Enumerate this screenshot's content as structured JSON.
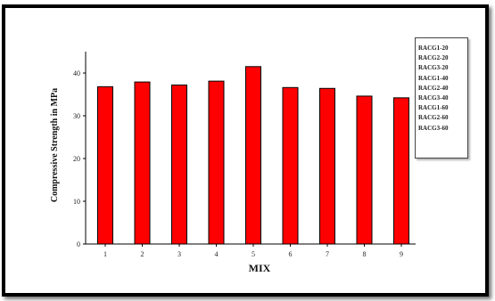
{
  "chart_data": {
    "type": "bar",
    "categories": [
      "1",
      "2",
      "3",
      "4",
      "5",
      "6",
      "7",
      "8",
      "9"
    ],
    "values": [
      36.8,
      37.9,
      37.2,
      38.1,
      41.5,
      36.6,
      36.4,
      34.6,
      34.2
    ],
    "xlabel": "MIX",
    "ylabel": "Compressive Strength in MPa",
    "ylim": [
      0,
      45
    ],
    "yticks": [
      0,
      10,
      20,
      30,
      40
    ],
    "grid": false,
    "bar_color": "#ff0000",
    "legend_position": "right",
    "legend": [
      "RACG1-20",
      "RACG2-20",
      "RACG3-20",
      "RACG1-40",
      "RACG2-40",
      "RACG3-40",
      "RACG1-60",
      "RACG2-60",
      "RACG3-60"
    ]
  }
}
